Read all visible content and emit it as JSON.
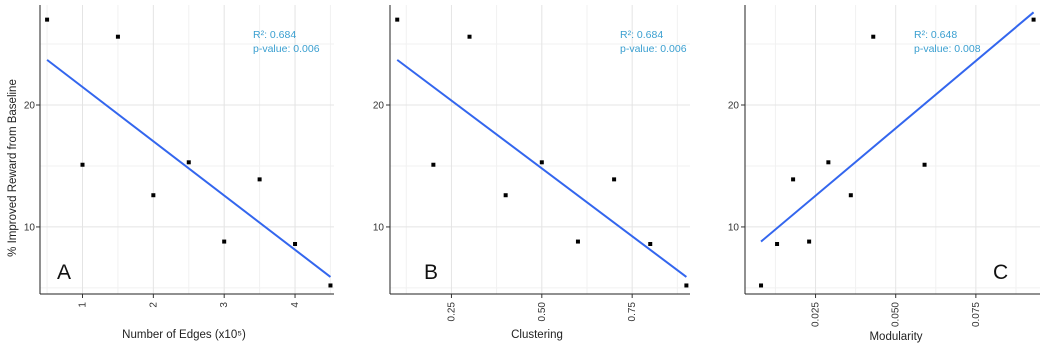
{
  "chart_data": [
    {
      "type": "scatter",
      "panel_letter": "A",
      "xlabel": "Number of Edges (x10⁵)",
      "ylabel": "% Improved Reward from Baseline",
      "xlim": [
        0.4,
        4.55
      ],
      "ylim": [
        4.5,
        28.2
      ],
      "x_ticks": [
        1,
        2,
        3,
        4
      ],
      "x_tick_labels": [
        "1",
        "2",
        "3",
        "4"
      ],
      "y_ticks": [
        10,
        20
      ],
      "y_tick_labels": [
        "10",
        "20"
      ],
      "points": [
        {
          "x": 0.5,
          "y": 27.0
        },
        {
          "x": 1.0,
          "y": 15.1
        },
        {
          "x": 1.5,
          "y": 25.6
        },
        {
          "x": 2.0,
          "y": 12.6
        },
        {
          "x": 2.5,
          "y": 15.3
        },
        {
          "x": 3.0,
          "y": 8.8
        },
        {
          "x": 3.5,
          "y": 13.9
        },
        {
          "x": 4.0,
          "y": 8.6
        },
        {
          "x": 4.5,
          "y": 5.2
        }
      ],
      "fit_line": {
        "x": [
          0.5,
          4.5
        ],
        "y": [
          23.7,
          5.9
        ]
      },
      "annotations": [
        "R²: 0.684",
        "p-value: 0.006"
      ],
      "annotation_color": "#3a9fd0",
      "line_color": "#3366ee",
      "grid": true
    },
    {
      "type": "scatter",
      "panel_letter": "B",
      "xlabel": "Clustering",
      "ylabel": "",
      "xlim": [
        0.08,
        0.91
      ],
      "ylim": [
        4.5,
        28.2
      ],
      "x_ticks": [
        0.25,
        0.5,
        0.75
      ],
      "x_tick_labels": [
        "0.25",
        "0.50",
        "0.75"
      ],
      "y_ticks": [
        10,
        20
      ],
      "y_tick_labels": [
        "10",
        "20"
      ],
      "points": [
        {
          "x": 0.1,
          "y": 27.0
        },
        {
          "x": 0.2,
          "y": 15.1
        },
        {
          "x": 0.3,
          "y": 25.6
        },
        {
          "x": 0.4,
          "y": 12.6
        },
        {
          "x": 0.5,
          "y": 15.3
        },
        {
          "x": 0.6,
          "y": 8.8
        },
        {
          "x": 0.7,
          "y": 13.9
        },
        {
          "x": 0.8,
          "y": 8.6
        },
        {
          "x": 0.9,
          "y": 5.2
        }
      ],
      "fit_line": {
        "x": [
          0.1,
          0.9
        ],
        "y": [
          23.7,
          5.9
        ]
      },
      "annotations": [
        "R²: 0.684",
        "p-value: 0.006"
      ],
      "annotation_color": "#3a9fd0",
      "line_color": "#3366ee",
      "grid": true
    },
    {
      "type": "scatter",
      "panel_letter": "C",
      "xlabel": "Modularity",
      "ylabel": "",
      "xlim": [
        0.003,
        0.095
      ],
      "ylim": [
        4.5,
        28.2
      ],
      "x_ticks": [
        0.025,
        0.05,
        0.075
      ],
      "x_tick_labels": [
        "0.025",
        "0.050",
        "0.075"
      ],
      "y_ticks": [
        10,
        20
      ],
      "y_tick_labels": [
        "10",
        "20"
      ],
      "points": [
        {
          "x": 0.008,
          "y": 5.2
        },
        {
          "x": 0.013,
          "y": 8.6
        },
        {
          "x": 0.018,
          "y": 13.9
        },
        {
          "x": 0.023,
          "y": 8.8
        },
        {
          "x": 0.029,
          "y": 15.3
        },
        {
          "x": 0.036,
          "y": 12.6
        },
        {
          "x": 0.043,
          "y": 25.6
        },
        {
          "x": 0.059,
          "y": 15.1
        },
        {
          "x": 0.093,
          "y": 27.0
        }
      ],
      "fit_line": {
        "x": [
          0.008,
          0.093
        ],
        "y": [
          8.8,
          27.6
        ]
      },
      "annotations": [
        "R²: 0.648",
        "p-value: 0.008"
      ],
      "annotation_color": "#3a9fd0",
      "line_color": "#3366ee",
      "grid": true
    }
  ]
}
